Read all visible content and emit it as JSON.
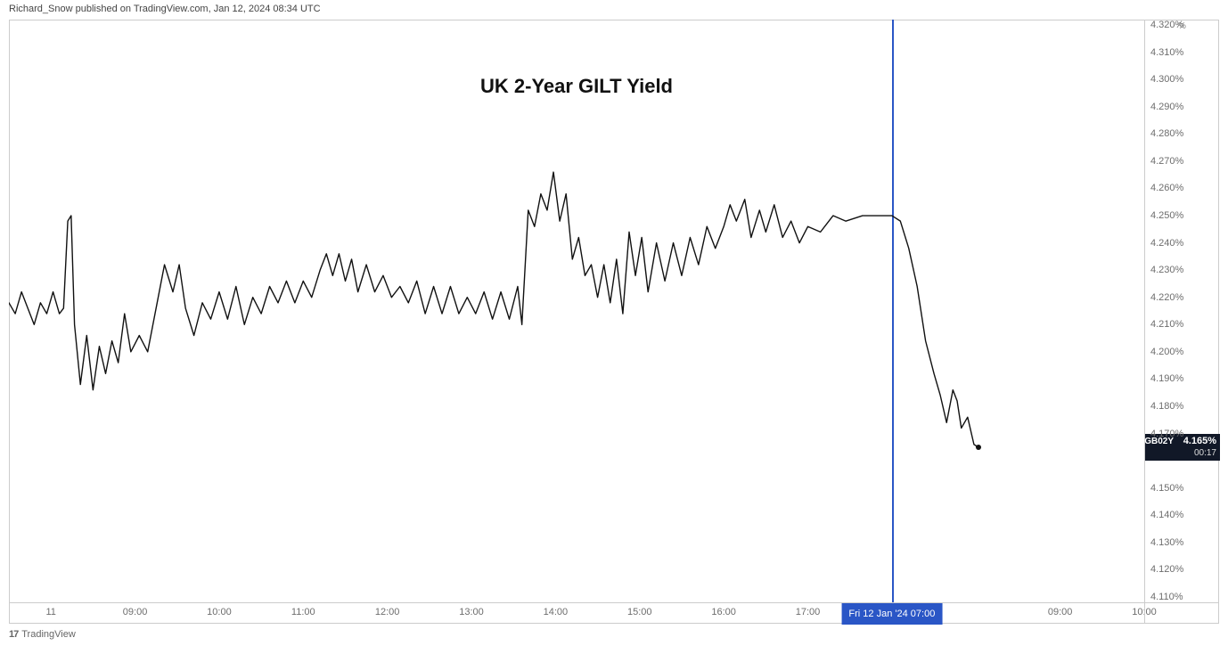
{
  "header": {
    "publish_line": "Richard_Snow published on TradingView.com, Jan 12, 2024 08:34 UTC"
  },
  "footer": {
    "brand_logo": "17",
    "brand_name": "TradingView"
  },
  "chart": {
    "type": "line",
    "title": "UK 2-Year GILT Yield",
    "title_fontsize": 22,
    "title_fontweight": "bold",
    "line_color": "#111111",
    "line_width": 1.4,
    "background_color": "#ffffff",
    "border_color": "#cccccc",
    "y_axis": {
      "unit_label": "%",
      "min": 4.108,
      "max": 4.322,
      "tick_step": 0.01,
      "ticks": [
        {
          "v": 4.32,
          "label": "4.320%"
        },
        {
          "v": 4.31,
          "label": "4.310%"
        },
        {
          "v": 4.3,
          "label": "4.300%"
        },
        {
          "v": 4.29,
          "label": "4.290%"
        },
        {
          "v": 4.28,
          "label": "4.280%"
        },
        {
          "v": 4.27,
          "label": "4.270%"
        },
        {
          "v": 4.26,
          "label": "4.260%"
        },
        {
          "v": 4.25,
          "label": "4.250%"
        },
        {
          "v": 4.24,
          "label": "4.240%"
        },
        {
          "v": 4.23,
          "label": "4.230%"
        },
        {
          "v": 4.22,
          "label": "4.220%"
        },
        {
          "v": 4.21,
          "label": "4.210%"
        },
        {
          "v": 4.2,
          "label": "4.200%"
        },
        {
          "v": 4.19,
          "label": "4.190%"
        },
        {
          "v": 4.18,
          "label": "4.180%"
        },
        {
          "v": 4.17,
          "label": "4.170%"
        },
        {
          "v": 4.15,
          "label": "4.150%"
        },
        {
          "v": 4.14,
          "label": "4.140%"
        },
        {
          "v": 4.13,
          "label": "4.130%"
        },
        {
          "v": 4.12,
          "label": "4.120%"
        },
        {
          "v": 4.11,
          "label": "4.110%"
        }
      ],
      "last_price_flag": {
        "symbol": "GB02Y",
        "value": "4.165%",
        "countdown": "00:17",
        "bg_color": "#111827",
        "text_color": "#ffffff",
        "y_value": 4.165
      }
    },
    "x_axis": {
      "min_t": 0,
      "max_t": 27.0,
      "ticks": [
        {
          "t": 1.0,
          "label": "11"
        },
        {
          "t": 3.0,
          "label": "09:00"
        },
        {
          "t": 5.0,
          "label": "10:00"
        },
        {
          "t": 7.0,
          "label": "11:00"
        },
        {
          "t": 9.0,
          "label": "12:00"
        },
        {
          "t": 11.0,
          "label": "13:00"
        },
        {
          "t": 13.0,
          "label": "14:00"
        },
        {
          "t": 15.0,
          "label": "15:00"
        },
        {
          "t": 17.0,
          "label": "16:00"
        },
        {
          "t": 19.0,
          "label": "17:00"
        },
        {
          "t": 25.0,
          "label": "09:00"
        },
        {
          "t": 27.0,
          "label": "10:00"
        }
      ],
      "marker": {
        "t": 21.0,
        "line_color": "#2a56c6",
        "flag_label": "Fri 12 Jan '24   07:00",
        "flag_bg": "#2a56c6",
        "flag_text_color": "#ffffff"
      }
    },
    "series": {
      "points": [
        [
          0.0,
          4.218
        ],
        [
          0.15,
          4.214
        ],
        [
          0.3,
          4.222
        ],
        [
          0.45,
          4.216
        ],
        [
          0.6,
          4.21
        ],
        [
          0.75,
          4.218
        ],
        [
          0.9,
          4.214
        ],
        [
          1.05,
          4.222
        ],
        [
          1.2,
          4.214
        ],
        [
          1.3,
          4.216
        ],
        [
          1.4,
          4.248
        ],
        [
          1.48,
          4.25
        ],
        [
          1.56,
          4.21
        ],
        [
          1.7,
          4.188
        ],
        [
          1.85,
          4.206
        ],
        [
          2.0,
          4.186
        ],
        [
          2.15,
          4.202
        ],
        [
          2.3,
          4.192
        ],
        [
          2.45,
          4.204
        ],
        [
          2.6,
          4.196
        ],
        [
          2.75,
          4.214
        ],
        [
          2.9,
          4.2
        ],
        [
          3.1,
          4.206
        ],
        [
          3.3,
          4.2
        ],
        [
          3.5,
          4.216
        ],
        [
          3.7,
          4.232
        ],
        [
          3.9,
          4.222
        ],
        [
          4.05,
          4.232
        ],
        [
          4.2,
          4.216
        ],
        [
          4.4,
          4.206
        ],
        [
          4.6,
          4.218
        ],
        [
          4.8,
          4.212
        ],
        [
          5.0,
          4.222
        ],
        [
          5.2,
          4.212
        ],
        [
          5.4,
          4.224
        ],
        [
          5.6,
          4.21
        ],
        [
          5.8,
          4.22
        ],
        [
          6.0,
          4.214
        ],
        [
          6.2,
          4.224
        ],
        [
          6.4,
          4.218
        ],
        [
          6.6,
          4.226
        ],
        [
          6.8,
          4.218
        ],
        [
          7.0,
          4.226
        ],
        [
          7.2,
          4.22
        ],
        [
          7.4,
          4.23
        ],
        [
          7.55,
          4.236
        ],
        [
          7.7,
          4.228
        ],
        [
          7.85,
          4.236
        ],
        [
          8.0,
          4.226
        ],
        [
          8.15,
          4.234
        ],
        [
          8.3,
          4.222
        ],
        [
          8.5,
          4.232
        ],
        [
          8.7,
          4.222
        ],
        [
          8.9,
          4.228
        ],
        [
          9.1,
          4.22
        ],
        [
          9.3,
          4.224
        ],
        [
          9.5,
          4.218
        ],
        [
          9.7,
          4.226
        ],
        [
          9.9,
          4.214
        ],
        [
          10.1,
          4.224
        ],
        [
          10.3,
          4.214
        ],
        [
          10.5,
          4.224
        ],
        [
          10.7,
          4.214
        ],
        [
          10.9,
          4.22
        ],
        [
          11.1,
          4.214
        ],
        [
          11.3,
          4.222
        ],
        [
          11.5,
          4.212
        ],
        [
          11.7,
          4.222
        ],
        [
          11.9,
          4.212
        ],
        [
          12.1,
          4.224
        ],
        [
          12.2,
          4.21
        ],
        [
          12.35,
          4.252
        ],
        [
          12.5,
          4.246
        ],
        [
          12.65,
          4.258
        ],
        [
          12.8,
          4.252
        ],
        [
          12.95,
          4.266
        ],
        [
          13.1,
          4.248
        ],
        [
          13.25,
          4.258
        ],
        [
          13.4,
          4.234
        ],
        [
          13.55,
          4.242
        ],
        [
          13.7,
          4.228
        ],
        [
          13.85,
          4.232
        ],
        [
          14.0,
          4.22
        ],
        [
          14.15,
          4.232
        ],
        [
          14.3,
          4.218
        ],
        [
          14.45,
          4.234
        ],
        [
          14.6,
          4.214
        ],
        [
          14.75,
          4.244
        ],
        [
          14.9,
          4.228
        ],
        [
          15.05,
          4.242
        ],
        [
          15.2,
          4.222
        ],
        [
          15.4,
          4.24
        ],
        [
          15.6,
          4.226
        ],
        [
          15.8,
          4.24
        ],
        [
          16.0,
          4.228
        ],
        [
          16.2,
          4.242
        ],
        [
          16.4,
          4.232
        ],
        [
          16.6,
          4.246
        ],
        [
          16.8,
          4.238
        ],
        [
          17.0,
          4.246
        ],
        [
          17.15,
          4.254
        ],
        [
          17.3,
          4.248
        ],
        [
          17.5,
          4.256
        ],
        [
          17.65,
          4.242
        ],
        [
          17.85,
          4.252
        ],
        [
          18.0,
          4.244
        ],
        [
          18.2,
          4.254
        ],
        [
          18.4,
          4.242
        ],
        [
          18.6,
          4.248
        ],
        [
          18.8,
          4.24
        ],
        [
          19.0,
          4.246
        ],
        [
          19.3,
          4.244
        ],
        [
          19.6,
          4.25
        ],
        [
          19.9,
          4.248
        ],
        [
          20.3,
          4.25
        ],
        [
          20.7,
          4.25
        ],
        [
          21.0,
          4.25
        ],
        [
          21.2,
          4.248
        ],
        [
          21.4,
          4.238
        ],
        [
          21.6,
          4.224
        ],
        [
          21.8,
          4.204
        ],
        [
          22.0,
          4.192
        ],
        [
          22.15,
          4.184
        ],
        [
          22.3,
          4.174
        ],
        [
          22.45,
          4.186
        ],
        [
          22.55,
          4.182
        ],
        [
          22.65,
          4.172
        ],
        [
          22.8,
          4.176
        ],
        [
          22.95,
          4.166
        ],
        [
          23.05,
          4.165
        ]
      ]
    }
  }
}
